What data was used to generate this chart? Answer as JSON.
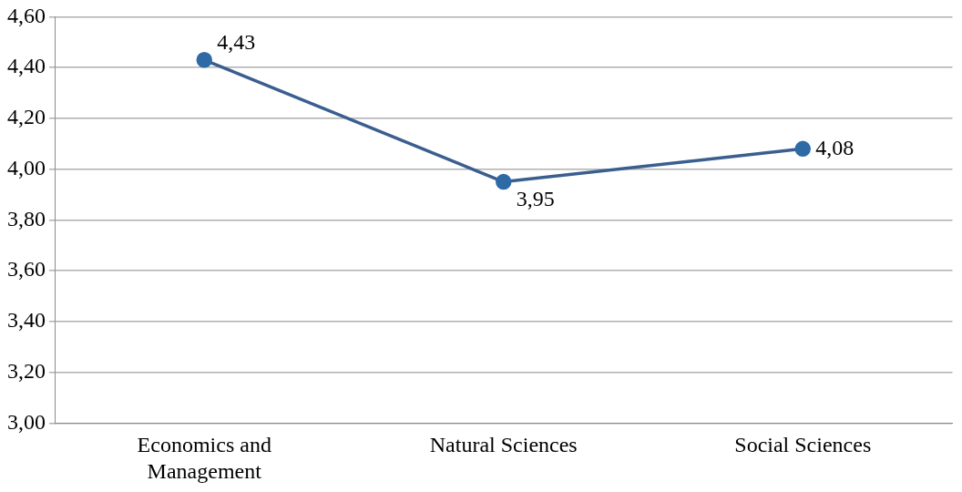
{
  "chart_data": {
    "type": "line",
    "categories": [
      "Economics and Management",
      "Natural Sciences",
      "Social Sciences"
    ],
    "series": [
      {
        "color": "#3a5f8f",
        "values": [
          4.43,
          3.95,
          4.08
        ],
        "value_labels": [
          "4,43",
          "3,95",
          "4,08"
        ]
      }
    ],
    "ylim": [
      3.0,
      4.6
    ],
    "yticks": [
      {
        "value": 3.0,
        "label": "3,00"
      },
      {
        "value": 3.2,
        "label": "3,20"
      },
      {
        "value": 3.4,
        "label": "3,40"
      },
      {
        "value": 3.6,
        "label": "3,60"
      },
      {
        "value": 3.8,
        "label": "3,80"
      },
      {
        "value": 4.0,
        "label": "4,00"
      },
      {
        "value": 4.2,
        "label": "4,20"
      },
      {
        "value": 4.4,
        "label": "4,40"
      },
      {
        "value": 4.6,
        "label": "4,60"
      }
    ],
    "grid": "y",
    "legend": false,
    "marker": "circle",
    "line_style": "solid"
  }
}
